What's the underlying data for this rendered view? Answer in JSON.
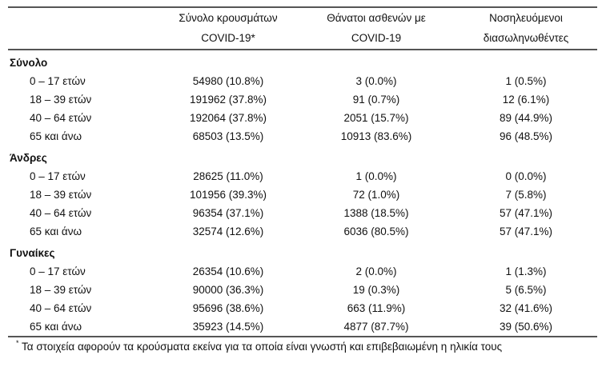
{
  "headers": [
    {
      "line1": "Σύνολο κρουσμάτων",
      "line2": "COVID-19*"
    },
    {
      "line1": "Θάνατοι ασθενών με",
      "line2": "COVID-19"
    },
    {
      "line1": "Νοσηλευόμενοι",
      "line2": "διασωληνωθέντες"
    }
  ],
  "sections": [
    {
      "title": "Σύνολο",
      "rows": [
        {
          "age": "0 – 17 ετών",
          "cases": "54980 (10.8%)",
          "deaths": "3 (0.0%)",
          "intubated": "1 (0.5%)"
        },
        {
          "age": "18 – 39 ετών",
          "cases": "191962 (37.8%)",
          "deaths": "91 (0.7%)",
          "intubated": "12 (6.1%)"
        },
        {
          "age": "40 – 64 ετών",
          "cases": "192064 (37.8%)",
          "deaths": "2051 (15.7%)",
          "intubated": "89 (44.9%)"
        },
        {
          "age": "65 και άνω",
          "cases": "68503 (13.5%)",
          "deaths": "10913 (83.6%)",
          "intubated": "96 (48.5%)"
        }
      ]
    },
    {
      "title": "Άνδρες",
      "rows": [
        {
          "age": "0 – 17 ετών",
          "cases": "28625 (11.0%)",
          "deaths": "1 (0.0%)",
          "intubated": "0 (0.0%)"
        },
        {
          "age": "18 – 39 ετών",
          "cases": "101956 (39.3%)",
          "deaths": "72 (1.0%)",
          "intubated": "7 (5.8%)"
        },
        {
          "age": "40 – 64 ετών",
          "cases": "96354 (37.1%)",
          "deaths": "1388 (18.5%)",
          "intubated": "57 (47.1%)"
        },
        {
          "age": "65 και άνω",
          "cases": "32574 (12.6%)",
          "deaths": "6036 (80.5%)",
          "intubated": "57 (47.1%)"
        }
      ]
    },
    {
      "title": "Γυναίκες",
      "rows": [
        {
          "age": "0 – 17 ετών",
          "cases": "26354 (10.6%)",
          "deaths": "2 (0.0%)",
          "intubated": "1 (1.3%)"
        },
        {
          "age": "18 – 39 ετών",
          "cases": "90000 (36.3%)",
          "deaths": "19 (0.3%)",
          "intubated": "5 (6.5%)"
        },
        {
          "age": "40 – 64 ετών",
          "cases": "95696 (38.6%)",
          "deaths": "663 (11.9%)",
          "intubated": "32 (41.6%)"
        },
        {
          "age": "65 και άνω",
          "cases": "35923 (14.5%)",
          "deaths": "4877 (87.7%)",
          "intubated": "39 (50.6%)"
        }
      ]
    }
  ],
  "footnote": {
    "marker": "*",
    "text": "Τα στοιχεία αφορούν τα κρούσματα εκείνα για τα οποία είναι γνωστή και επιβεβαιωμένη η ηλικία τους"
  }
}
